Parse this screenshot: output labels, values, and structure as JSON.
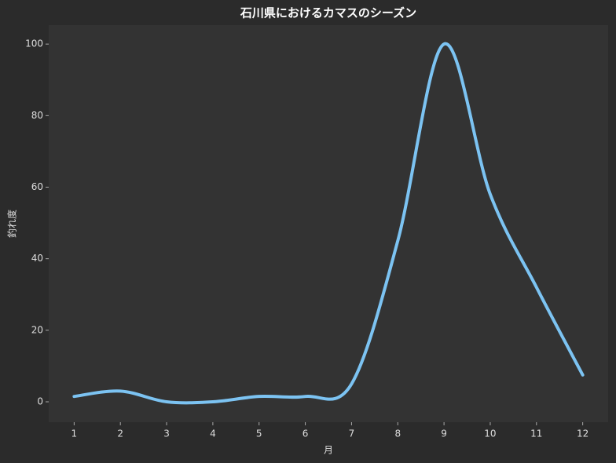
{
  "chart_data": {
    "type": "line",
    "title": "石川県におけるカマスのシーズン",
    "x_label": "月",
    "y_label": "釣れ度",
    "x": [
      1,
      2,
      3,
      4,
      5,
      6,
      7,
      8,
      9,
      10,
      11,
      12
    ],
    "series": [
      {
        "name": "釣れ度",
        "color": "#7cc3f2",
        "values": [
          1.5,
          3,
          0,
          0,
          1.5,
          1.5,
          5,
          45,
          100,
          58,
          32,
          7.5
        ]
      }
    ],
    "xlim": [
      0.45,
      12.55
    ],
    "ylim": [
      -5.7,
      105.3
    ],
    "xticks": [
      1,
      2,
      3,
      4,
      5,
      6,
      7,
      8,
      9,
      10,
      11,
      12
    ],
    "yticks": [
      0,
      20,
      40,
      60,
      80,
      100
    ],
    "smooth": true
  }
}
